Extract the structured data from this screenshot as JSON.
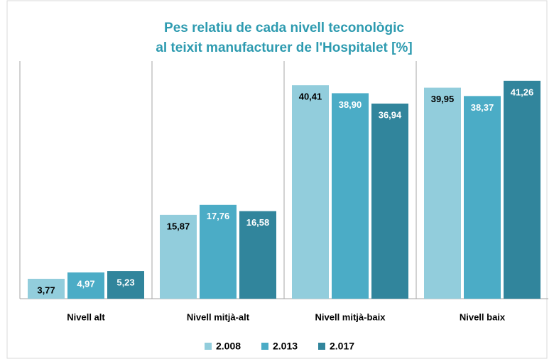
{
  "chart_data": {
    "type": "bar",
    "title": [
      "Pes relatiu de cada nivell teconològic",
      "al teixit manufacturer de l'Hospitalet [%]"
    ],
    "categories": [
      "Nivell alt",
      "Nivell mitjà-alt",
      "Nivell mitjà-baix",
      "Nivell baix"
    ],
    "series": [
      {
        "name": "2.008",
        "color": "#92cddc",
        "values": [
          3.77,
          15.87,
          40.41,
          39.95
        ],
        "value_labels": [
          "3,77",
          "15,87",
          "40,41",
          "39,95"
        ]
      },
      {
        "name": "2.013",
        "color": "#4bacc6",
        "values": [
          4.97,
          17.76,
          38.9,
          38.37
        ],
        "value_labels": [
          "4,97",
          "17,76",
          "38,90",
          "38,37"
        ]
      },
      {
        "name": "2.017",
        "color": "#31859c",
        "values": [
          5.23,
          16.58,
          36.94,
          41.26
        ],
        "value_labels": [
          "5,23",
          "16,58",
          "36,94",
          "41,26"
        ]
      }
    ],
    "ylim": [
      0,
      45
    ],
    "legend": "bottom"
  }
}
